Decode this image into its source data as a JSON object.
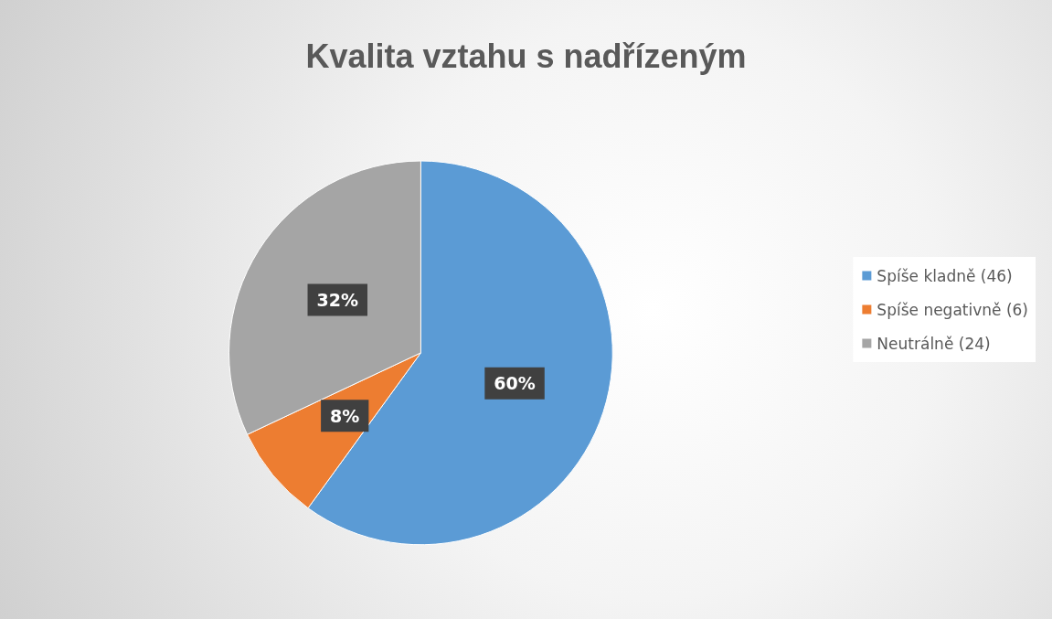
{
  "chart_data": {
    "type": "pie",
    "title": "Kvalita vztahu s nadřízeným",
    "categories": [
      "Spíše kladně (46)",
      "Spíše negativně (6)",
      "Neutrálně (24)"
    ],
    "values": [
      60,
      8,
      32
    ],
    "value_labels": [
      "60%",
      "8%",
      "32%"
    ],
    "colors": [
      "#5b9bd5",
      "#ed7d31",
      "#a5a5a5"
    ],
    "legend": "right"
  }
}
